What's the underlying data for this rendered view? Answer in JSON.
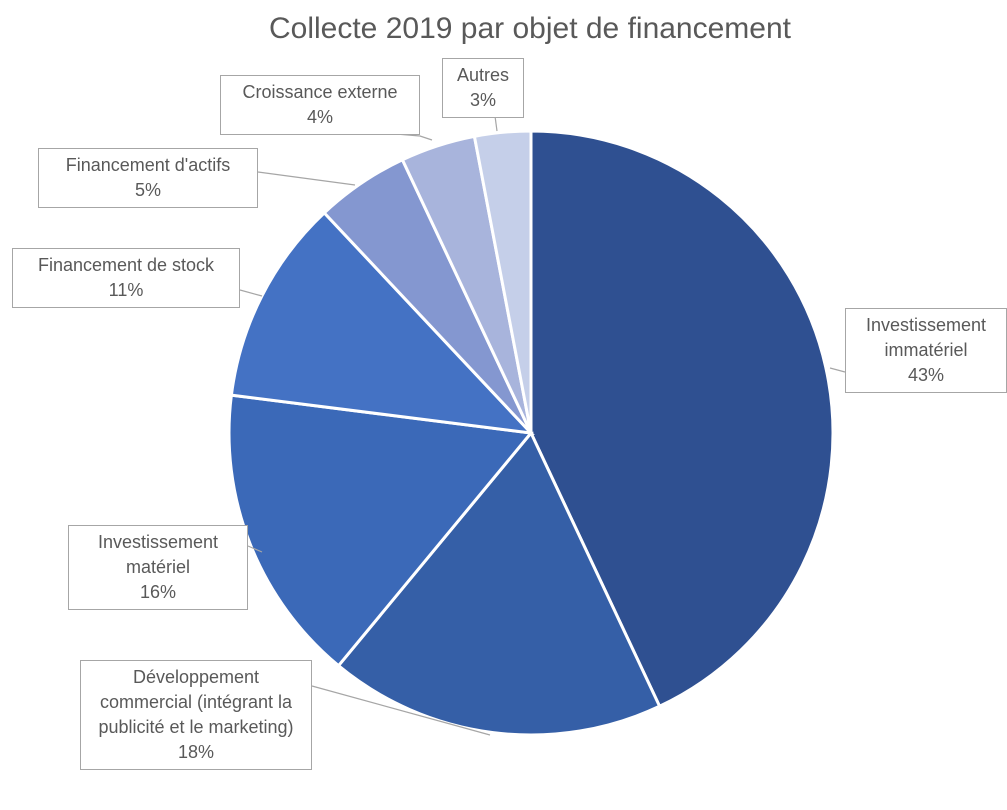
{
  "chart_data": {
    "type": "pie",
    "title": "Collecte 2019 par objet de financement",
    "categories": [
      "Investissement immatériel",
      "Développement commercial (intégrant la publicité et le marketing)",
      "Investissement matériel",
      "Financement de stock",
      "Financement d'actifs",
      "Croissance externe",
      "Autres"
    ],
    "values": [
      43,
      18,
      16,
      11,
      5,
      4,
      3
    ],
    "value_labels": [
      "43%",
      "18%",
      "16%",
      "11%",
      "5%",
      "4%",
      "3%"
    ],
    "colors": [
      "#2f5091",
      "#355fa7",
      "#3b69b8",
      "#4472c4",
      "#8497d0",
      "#a8b4dc",
      "#c5cfe9"
    ]
  }
}
